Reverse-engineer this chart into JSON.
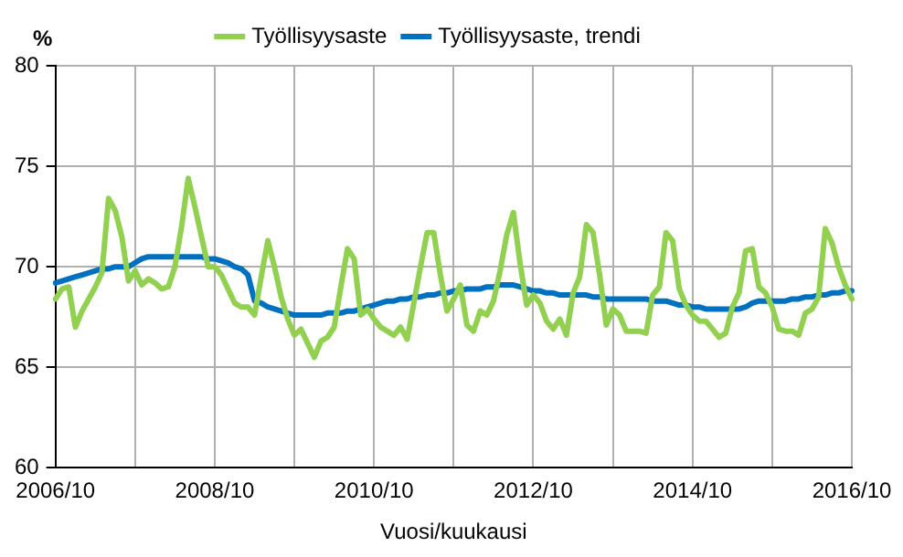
{
  "chart_data": {
    "type": "line",
    "xlabel": "Vuosi/kuukausi",
    "ylabel": "%",
    "categories": [
      "2006/10",
      null,
      null,
      null,
      null,
      null,
      null,
      null,
      null,
      null,
      null,
      null,
      null,
      null,
      null,
      null,
      null,
      null,
      null,
      null,
      null,
      null,
      null,
      null,
      "2008/10",
      null,
      null,
      null,
      null,
      null,
      null,
      null,
      null,
      null,
      null,
      null,
      null,
      null,
      null,
      null,
      null,
      null,
      null,
      null,
      null,
      null,
      null,
      null,
      "2010/10",
      null,
      null,
      null,
      null,
      null,
      null,
      null,
      null,
      null,
      null,
      null,
      null,
      null,
      null,
      null,
      null,
      null,
      null,
      null,
      null,
      null,
      null,
      null,
      "2012/10",
      null,
      null,
      null,
      null,
      null,
      null,
      null,
      null,
      null,
      null,
      null,
      null,
      null,
      null,
      null,
      null,
      null,
      null,
      null,
      null,
      null,
      null,
      null,
      "2014/10",
      null,
      null,
      null,
      null,
      null,
      null,
      null,
      null,
      null,
      null,
      null,
      null,
      null,
      null,
      null,
      null,
      null,
      null,
      null,
      null,
      null,
      null,
      null,
      "2016/10"
    ],
    "series": [
      {
        "name": "Työllisyysaste",
        "color": "#92d050",
        "values": [
          68.4,
          68.9,
          69.0,
          67.0,
          67.8,
          68.4,
          69.0,
          69.7,
          73.4,
          72.8,
          71.5,
          69.3,
          69.8,
          69.1,
          69.4,
          69.2,
          68.9,
          69.0,
          70.0,
          72.0,
          74.4,
          73.0,
          71.5,
          70.0,
          70.0,
          69.6,
          68.9,
          68.2,
          68.0,
          68.0,
          67.6,
          69.5,
          71.3,
          70.0,
          68.5,
          67.4,
          66.6,
          66.9,
          66.2,
          65.5,
          66.3,
          66.5,
          67.0,
          69.0,
          70.9,
          70.4,
          67.6,
          67.9,
          67.4,
          67.0,
          66.8,
          66.6,
          67.0,
          66.4,
          68.2,
          70.0,
          71.7,
          71.7,
          69.6,
          67.8,
          68.4,
          69.1,
          67.1,
          66.8,
          67.8,
          67.6,
          68.3,
          69.8,
          71.6,
          72.7,
          70.2,
          68.1,
          68.6,
          68.2,
          67.3,
          66.9,
          67.4,
          66.6,
          68.7,
          69.5,
          72.1,
          71.7,
          69.6,
          67.1,
          67.9,
          67.6,
          66.8,
          66.8,
          66.8,
          66.7,
          68.6,
          69.0,
          71.7,
          71.3,
          68.9,
          68.1,
          67.6,
          67.3,
          67.3,
          66.9,
          66.5,
          66.7,
          68.0,
          68.7,
          70.8,
          70.9,
          69.0,
          68.7,
          68.0,
          66.9,
          66.8,
          66.8,
          66.6,
          67.7,
          67.9,
          68.5,
          71.9,
          71.2,
          70.0,
          69.1,
          68.4
        ]
      },
      {
        "name": "Työllisyysaste, trendi",
        "color": "#0070c0",
        "values": [
          69.2,
          69.3,
          69.4,
          69.5,
          69.6,
          69.7,
          69.8,
          69.9,
          69.9,
          70.0,
          70.0,
          70.0,
          70.2,
          70.4,
          70.5,
          70.5,
          70.5,
          70.5,
          70.5,
          70.5,
          70.5,
          70.5,
          70.5,
          70.4,
          70.4,
          70.3,
          70.2,
          70.0,
          69.9,
          69.6,
          68.3,
          68.2,
          68.0,
          67.9,
          67.8,
          67.7,
          67.6,
          67.6,
          67.6,
          67.6,
          67.6,
          67.7,
          67.7,
          67.7,
          67.8,
          67.8,
          67.9,
          68.0,
          68.1,
          68.2,
          68.3,
          68.3,
          68.4,
          68.4,
          68.5,
          68.5,
          68.6,
          68.6,
          68.7,
          68.7,
          68.8,
          68.8,
          68.9,
          68.9,
          68.9,
          69.0,
          69.0,
          69.1,
          69.1,
          69.1,
          69.0,
          68.9,
          68.8,
          68.8,
          68.7,
          68.7,
          68.6,
          68.6,
          68.6,
          68.6,
          68.6,
          68.5,
          68.5,
          68.4,
          68.4,
          68.4,
          68.4,
          68.4,
          68.4,
          68.4,
          68.3,
          68.3,
          68.3,
          68.2,
          68.1,
          68.1,
          68.0,
          68.0,
          67.9,
          67.9,
          67.9,
          67.9,
          67.9,
          67.9,
          68.0,
          68.2,
          68.3,
          68.3,
          68.3,
          68.3,
          68.3,
          68.4,
          68.4,
          68.5,
          68.5,
          68.6,
          68.6,
          68.7,
          68.7,
          68.8,
          68.8
        ]
      }
    ],
    "ylim": [
      60,
      80
    ],
    "yticks": [
      60,
      65,
      70,
      75,
      80
    ],
    "grid": true,
    "legend": "top",
    "marker": "none",
    "line_style": "solid"
  }
}
